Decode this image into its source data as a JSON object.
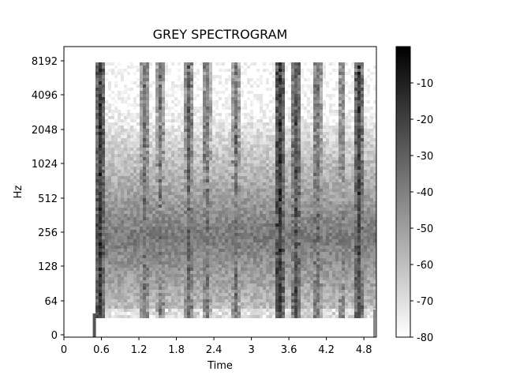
{
  "chart_data": {
    "type": "heatmap",
    "title": "GREY SPECTROGRAM",
    "xlabel": "Time",
    "ylabel": "Hz",
    "xlim": [
      0,
      5.0
    ],
    "y_scale": "symlog",
    "x_ticks": [
      0,
      0.6,
      1.2,
      1.8,
      2.4,
      3,
      3.6,
      4.2,
      4.8
    ],
    "x_tick_labels": [
      "0",
      "0.6",
      "1.2",
      "1.8",
      "2.4",
      "3",
      "3.6",
      "4.2",
      "4.8"
    ],
    "y_tick_labels": [
      "0",
      "64",
      "128",
      "256",
      "512",
      "1024",
      "2048",
      "4096",
      "8192"
    ],
    "colorbar": {
      "range": [
        -80,
        0
      ],
      "ticks": [
        -10,
        -20,
        -30,
        -40,
        -50,
        -60,
        -70,
        -80
      ],
      "tick_labels": [
        "-10",
        "-20",
        "-30",
        "-40",
        "-50",
        "-60",
        "-70",
        "-80"
      ],
      "colormap": "grey (white = -80 dB, black = 0 dB)"
    },
    "signal_onset_time": 0.5,
    "vertical_events": [
      {
        "time": 0.58,
        "level_db": -8
      },
      {
        "time": 1.3,
        "level_db": -25
      },
      {
        "time": 1.55,
        "level_db": -28
      },
      {
        "time": 2.0,
        "level_db": -22
      },
      {
        "time": 2.28,
        "level_db": -25
      },
      {
        "time": 2.75,
        "level_db": -28
      },
      {
        "time": 3.45,
        "level_db": -6
      },
      {
        "time": 3.72,
        "level_db": -15
      },
      {
        "time": 4.05,
        "level_db": -22
      },
      {
        "time": 4.45,
        "level_db": -30
      },
      {
        "time": 4.72,
        "level_db": -12
      }
    ],
    "colors": {
      "low": "#ffffff",
      "high": "#000000",
      "axis": "#000000"
    }
  }
}
